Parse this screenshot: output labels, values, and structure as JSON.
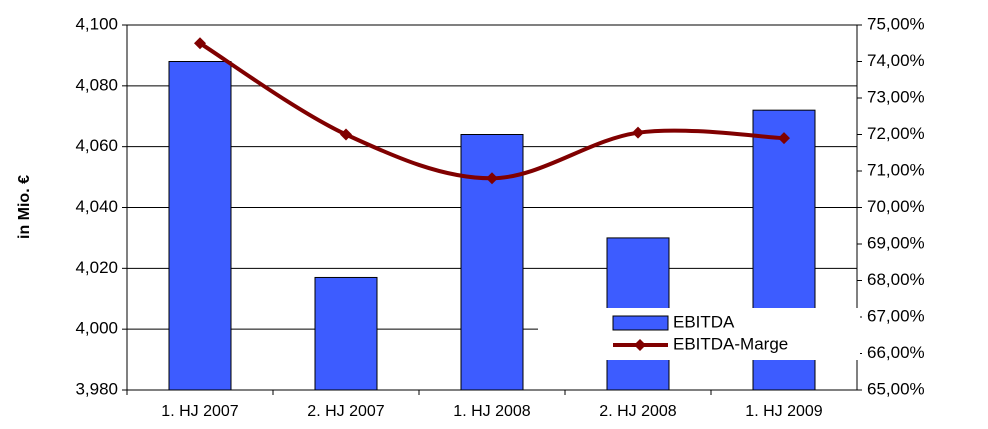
{
  "chart_data": {
    "type": "bar-line",
    "y_label": "in Mio. €",
    "categories": [
      "1. HJ 2007",
      "2. HJ 2007",
      "1. HJ 2008",
      "2. HJ 2008",
      "1. HJ 2009"
    ],
    "series": [
      {
        "name": "EBITDA",
        "color": "#3d5cff",
        "type": "bar",
        "values": [
          4088,
          4017,
          4064,
          4030,
          4072
        ]
      },
      {
        "name": "EBITDA-Marge",
        "color": "#800000",
        "type": "line",
        "axis": "y2",
        "values": [
          74.5,
          72.0,
          70.8,
          72.05,
          71.9
        ]
      }
    ],
    "ylim": [
      3980,
      4100
    ],
    "yticks": [
      {
        "value": 3980,
        "label": "3,980"
      },
      {
        "value": 4000,
        "label": "4,000"
      },
      {
        "value": 4020,
        "label": "4,020"
      },
      {
        "value": 4040,
        "label": "4,040"
      },
      {
        "value": 4060,
        "label": "4,060"
      },
      {
        "value": 4080,
        "label": "4,080"
      },
      {
        "value": 4100,
        "label": "4,100"
      }
    ],
    "y2lim": [
      65,
      75
    ],
    "y2ticks": [
      {
        "value": 65,
        "label": "65,00%"
      },
      {
        "value": 66,
        "label": "66,00%"
      },
      {
        "value": 67,
        "label": "67,00%"
      },
      {
        "value": 68,
        "label": "68,00%"
      },
      {
        "value": 69,
        "label": "69,00%"
      },
      {
        "value": 70,
        "label": "70,00%"
      },
      {
        "value": 71,
        "label": "71,00%"
      },
      {
        "value": 72,
        "label": "72,00%"
      },
      {
        "value": 73,
        "label": "73,00%"
      },
      {
        "value": 74,
        "label": "74,00%"
      },
      {
        "value": 75,
        "label": "75,00%"
      }
    ],
    "grid": true
  }
}
